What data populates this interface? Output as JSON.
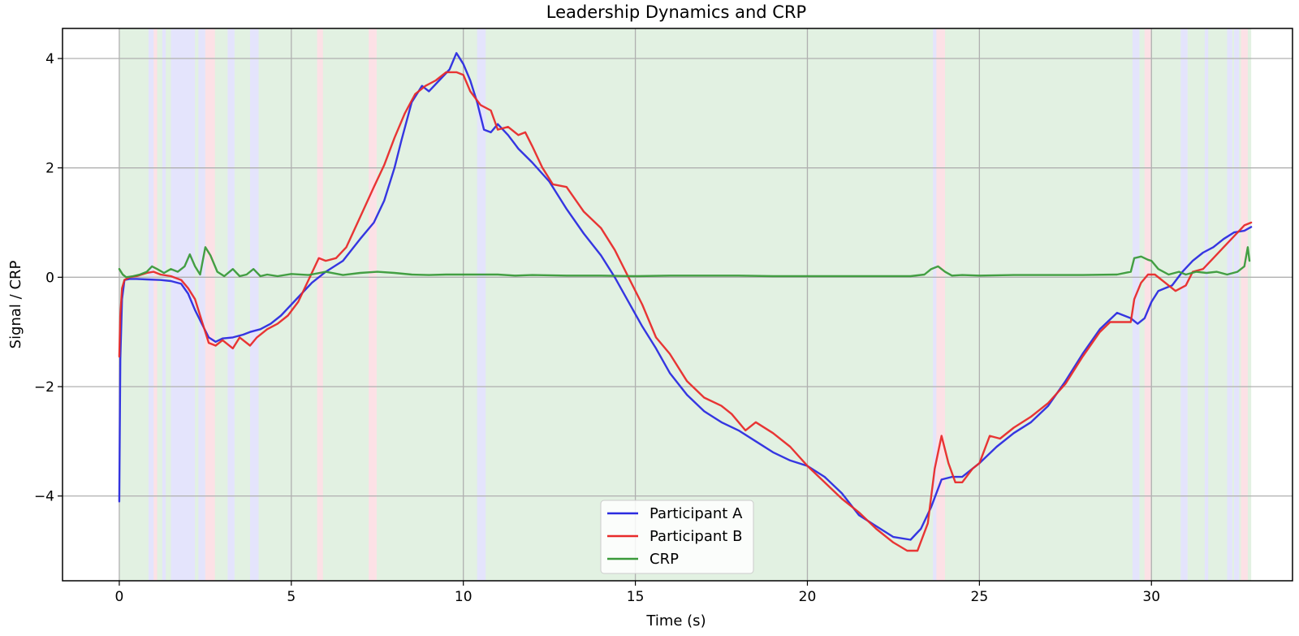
{
  "chart_data": {
    "type": "line",
    "title": "Leadership Dynamics and CRP",
    "xlabel": "Time (s)",
    "ylabel": "Signal / CRP",
    "xlim": [
      -1.65,
      34.1
    ],
    "ylim": [
      -5.55,
      4.55
    ],
    "xticks": [
      0,
      5,
      10,
      15,
      20,
      25,
      30
    ],
    "xtick_labels": [
      "0",
      "5",
      "10",
      "15",
      "20",
      "25",
      "30"
    ],
    "yticks": [
      -4,
      -2,
      0,
      2,
      4
    ],
    "ytick_labels": [
      "−4",
      "−2",
      "0",
      "2",
      "4"
    ],
    "grid": true,
    "legend_position": "bottom-center",
    "background_regions": {
      "colors": {
        "green": "#e2f1e2",
        "blue": "#e4e4fc",
        "pink": "#fce1e6"
      },
      "base": "green",
      "spans": [
        {
          "start": 0.85,
          "end": 1.0,
          "color": "blue"
        },
        {
          "start": 1.0,
          "end": 1.1,
          "color": "pink"
        },
        {
          "start": 1.25,
          "end": 1.35,
          "color": "blue"
        },
        {
          "start": 1.5,
          "end": 2.2,
          "color": "blue"
        },
        {
          "start": 2.3,
          "end": 2.5,
          "color": "blue"
        },
        {
          "start": 2.5,
          "end": 2.78,
          "color": "pink"
        },
        {
          "start": 3.15,
          "end": 3.35,
          "color": "blue"
        },
        {
          "start": 3.8,
          "end": 4.05,
          "color": "blue"
        },
        {
          "start": 5.75,
          "end": 5.92,
          "color": "pink"
        },
        {
          "start": 7.25,
          "end": 7.48,
          "color": "pink"
        },
        {
          "start": 10.4,
          "end": 10.65,
          "color": "blue"
        },
        {
          "start": 23.65,
          "end": 23.75,
          "color": "blue"
        },
        {
          "start": 23.75,
          "end": 24.0,
          "color": "pink"
        },
        {
          "start": 29.45,
          "end": 29.65,
          "color": "blue"
        },
        {
          "start": 29.8,
          "end": 29.98,
          "color": "pink"
        },
        {
          "start": 30.85,
          "end": 31.05,
          "color": "blue"
        },
        {
          "start": 31.55,
          "end": 31.65,
          "color": "blue"
        },
        {
          "start": 32.2,
          "end": 32.35,
          "color": "blue"
        },
        {
          "start": 32.4,
          "end": 32.55,
          "color": "blue"
        },
        {
          "start": 32.6,
          "end": 32.8,
          "color": "pink"
        }
      ]
    },
    "series": [
      {
        "name": "Participant A",
        "color": "#2b2be0",
        "x": [
          0.0,
          0.03,
          0.08,
          0.15,
          0.3,
          0.5,
          0.8,
          1.2,
          1.5,
          1.8,
          2.0,
          2.2,
          2.4,
          2.6,
          2.8,
          3.0,
          3.3,
          3.6,
          3.8,
          4.1,
          4.4,
          4.7,
          5.0,
          5.3,
          5.6,
          6.0,
          6.5,
          7.0,
          7.4,
          7.7,
          8.0,
          8.2,
          8.5,
          8.8,
          9.0,
          9.3,
          9.6,
          9.8,
          10.0,
          10.2,
          10.4,
          10.6,
          10.8,
          11.0,
          11.3,
          11.6,
          12.0,
          12.5,
          13.0,
          13.5,
          14.0,
          14.4,
          14.8,
          15.2,
          15.6,
          16.0,
          16.5,
          17.0,
          17.5,
          18.0,
          18.5,
          19.0,
          19.5,
          20.0,
          20.5,
          21.0,
          21.5,
          22.0,
          22.5,
          23.0,
          23.3,
          23.6,
          23.9,
          24.2,
          24.5,
          25.0,
          25.5,
          26.0,
          26.5,
          27.0,
          27.5,
          28.0,
          28.5,
          29.0,
          29.4,
          29.6,
          29.8,
          30.0,
          30.2,
          30.4,
          30.6,
          30.9,
          31.2,
          31.5,
          31.8,
          32.1,
          32.4,
          32.7,
          32.9
        ],
        "y": [
          -4.1,
          -1.5,
          -0.4,
          -0.05,
          -0.03,
          -0.03,
          -0.04,
          -0.05,
          -0.07,
          -0.12,
          -0.3,
          -0.6,
          -0.85,
          -1.1,
          -1.18,
          -1.12,
          -1.1,
          -1.05,
          -1.0,
          -0.95,
          -0.85,
          -0.7,
          -0.5,
          -0.3,
          -0.1,
          0.1,
          0.3,
          0.7,
          1.0,
          1.4,
          2.0,
          2.5,
          3.2,
          3.5,
          3.4,
          3.6,
          3.8,
          4.1,
          3.9,
          3.6,
          3.2,
          2.7,
          2.65,
          2.8,
          2.6,
          2.35,
          2.1,
          1.75,
          1.25,
          0.8,
          0.4,
          0.0,
          -0.45,
          -0.9,
          -1.3,
          -1.75,
          -2.15,
          -2.45,
          -2.65,
          -2.8,
          -3.0,
          -3.2,
          -3.35,
          -3.45,
          -3.65,
          -3.95,
          -4.35,
          -4.55,
          -4.75,
          -4.8,
          -4.6,
          -4.2,
          -3.7,
          -3.65,
          -3.65,
          -3.4,
          -3.1,
          -2.85,
          -2.65,
          -2.35,
          -1.9,
          -1.4,
          -0.95,
          -0.65,
          -0.75,
          -0.85,
          -0.75,
          -0.45,
          -0.25,
          -0.2,
          -0.15,
          0.1,
          0.3,
          0.45,
          0.55,
          0.7,
          0.82,
          0.85,
          0.92
        ]
      },
      {
        "name": "Participant B",
        "color": "#e82a2a",
        "x": [
          0.0,
          0.03,
          0.08,
          0.15,
          0.3,
          0.5,
          0.8,
          1.0,
          1.2,
          1.5,
          1.8,
          2.0,
          2.2,
          2.4,
          2.6,
          2.8,
          3.0,
          3.3,
          3.5,
          3.8,
          4.0,
          4.3,
          4.6,
          4.9,
          5.2,
          5.5,
          5.8,
          6.0,
          6.3,
          6.6,
          7.0,
          7.4,
          7.7,
          8.0,
          8.3,
          8.6,
          8.9,
          9.2,
          9.5,
          9.8,
          10.0,
          10.2,
          10.5,
          10.8,
          11.0,
          11.3,
          11.6,
          11.8,
          12.0,
          12.3,
          12.6,
          13.0,
          13.5,
          14.0,
          14.4,
          14.8,
          15.2,
          15.6,
          16.0,
          16.5,
          17.0,
          17.5,
          17.8,
          18.2,
          18.5,
          19.0,
          19.5,
          20.0,
          20.5,
          21.0,
          21.5,
          22.0,
          22.5,
          22.9,
          23.2,
          23.5,
          23.7,
          23.9,
          24.1,
          24.3,
          24.5,
          24.8,
          25.0,
          25.3,
          25.6,
          26.0,
          26.5,
          27.0,
          27.5,
          28.0,
          28.5,
          28.8,
          29.2,
          29.4,
          29.5,
          29.7,
          29.9,
          30.1,
          30.4,
          30.7,
          31.0,
          31.2,
          31.5,
          31.8,
          32.1,
          32.4,
          32.7,
          32.9
        ],
        "y": [
          -1.45,
          -0.7,
          -0.2,
          -0.05,
          0.0,
          0.02,
          0.08,
          0.1,
          0.05,
          0.02,
          -0.05,
          -0.2,
          -0.4,
          -0.8,
          -1.2,
          -1.25,
          -1.15,
          -1.3,
          -1.1,
          -1.25,
          -1.1,
          -0.95,
          -0.85,
          -0.7,
          -0.45,
          -0.05,
          0.35,
          0.3,
          0.35,
          0.55,
          1.1,
          1.65,
          2.05,
          2.55,
          3.0,
          3.35,
          3.5,
          3.6,
          3.75,
          3.75,
          3.7,
          3.4,
          3.15,
          3.05,
          2.7,
          2.75,
          2.6,
          2.65,
          2.4,
          2.0,
          1.7,
          1.65,
          1.2,
          0.9,
          0.5,
          0.0,
          -0.5,
          -1.1,
          -1.4,
          -1.9,
          -2.2,
          -2.35,
          -2.5,
          -2.8,
          -2.65,
          -2.85,
          -3.1,
          -3.45,
          -3.75,
          -4.05,
          -4.3,
          -4.6,
          -4.85,
          -5.0,
          -5.0,
          -4.5,
          -3.5,
          -2.9,
          -3.4,
          -3.75,
          -3.75,
          -3.5,
          -3.4,
          -2.9,
          -2.95,
          -2.75,
          -2.55,
          -2.3,
          -1.95,
          -1.45,
          -1.0,
          -0.82,
          -0.82,
          -0.82,
          -0.4,
          -0.1,
          0.05,
          0.05,
          -0.1,
          -0.25,
          -0.15,
          0.1,
          0.15,
          0.35,
          0.55,
          0.75,
          0.95,
          1.0
        ]
      },
      {
        "name": "CRP",
        "color": "#3a9a3a",
        "x": [
          0.0,
          0.1,
          0.2,
          0.4,
          0.6,
          0.8,
          0.95,
          1.1,
          1.3,
          1.5,
          1.7,
          1.9,
          2.05,
          2.2,
          2.35,
          2.5,
          2.65,
          2.85,
          3.05,
          3.3,
          3.5,
          3.7,
          3.9,
          4.1,
          4.3,
          4.6,
          5.0,
          5.5,
          6.0,
          6.5,
          7.0,
          7.5,
          8.0,
          8.5,
          9.0,
          9.5,
          10.0,
          10.5,
          11.0,
          11.5,
          12.0,
          13.0,
          14.0,
          15.0,
          16.0,
          17.0,
          18.0,
          19.0,
          20.0,
          21.0,
          22.0,
          23.0,
          23.4,
          23.6,
          23.8,
          24.0,
          24.2,
          24.5,
          25.0,
          26.0,
          27.0,
          28.0,
          29.0,
          29.4,
          29.5,
          29.7,
          29.9,
          30.0,
          30.2,
          30.5,
          30.8,
          31.0,
          31.3,
          31.6,
          31.9,
          32.2,
          32.5,
          32.7,
          32.8,
          32.85
        ],
        "y": [
          0.15,
          0.05,
          0.0,
          0.02,
          0.05,
          0.1,
          0.2,
          0.15,
          0.08,
          0.15,
          0.1,
          0.2,
          0.42,
          0.2,
          0.05,
          0.55,
          0.4,
          0.1,
          0.02,
          0.15,
          0.02,
          0.05,
          0.15,
          0.02,
          0.05,
          0.02,
          0.06,
          0.04,
          0.1,
          0.04,
          0.08,
          0.1,
          0.08,
          0.05,
          0.04,
          0.05,
          0.05,
          0.05,
          0.05,
          0.03,
          0.04,
          0.03,
          0.03,
          0.02,
          0.03,
          0.03,
          0.03,
          0.02,
          0.02,
          0.02,
          0.02,
          0.02,
          0.05,
          0.15,
          0.2,
          0.1,
          0.03,
          0.04,
          0.03,
          0.04,
          0.04,
          0.04,
          0.05,
          0.1,
          0.35,
          0.38,
          0.32,
          0.3,
          0.15,
          0.05,
          0.1,
          0.05,
          0.1,
          0.08,
          0.1,
          0.05,
          0.1,
          0.2,
          0.55,
          0.3
        ]
      }
    ]
  }
}
